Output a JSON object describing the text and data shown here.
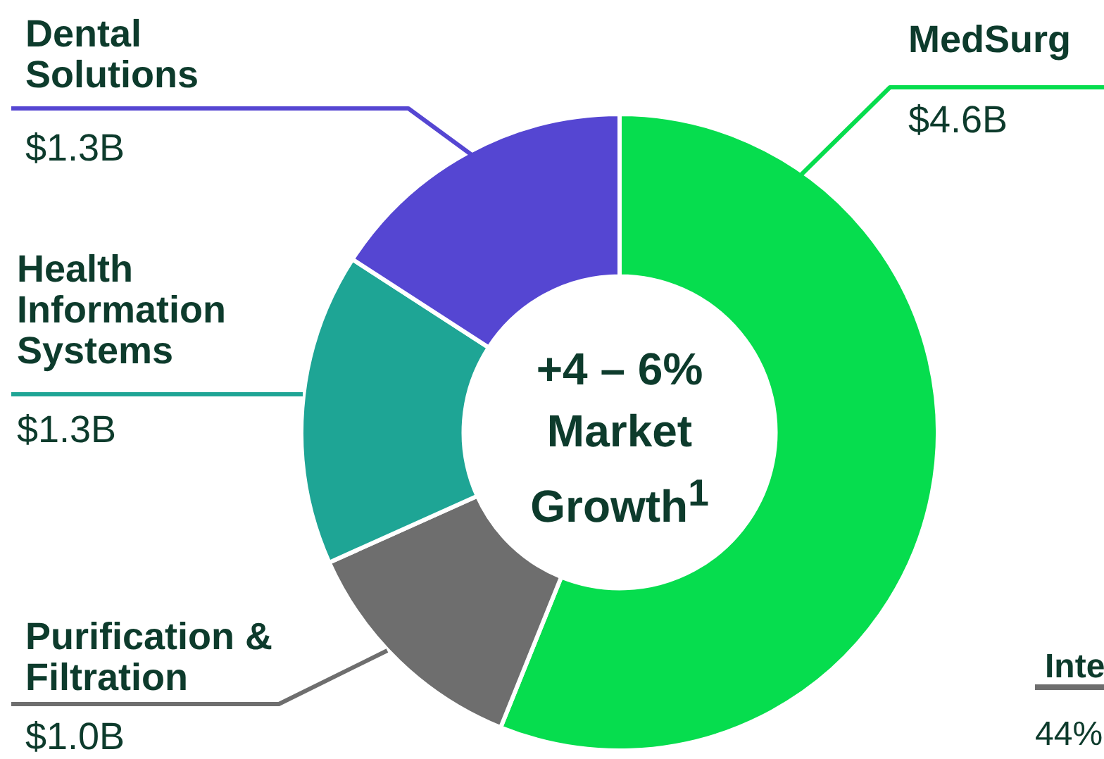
{
  "chart_data": {
    "type": "donut",
    "title": "+4 – 6% Market Growth$^{1}$",
    "categories": [
      "MedSurg",
      "Purification & Filtration",
      "Health Information Systems",
      "Dental Solutions"
    ],
    "values": [
      4.6,
      1.0,
      1.3,
      1.3
    ],
    "value_labels": [
      "$4.6B",
      "$1.0B",
      "$1.3B",
      "$1.3B"
    ],
    "colors": [
      "#06dd4e",
      "#6e6e6e",
      "#1ea595",
      "#5546d2"
    ],
    "annotations": [
      "Inte",
      "44%"
    ],
    "legend": false
  }
}
